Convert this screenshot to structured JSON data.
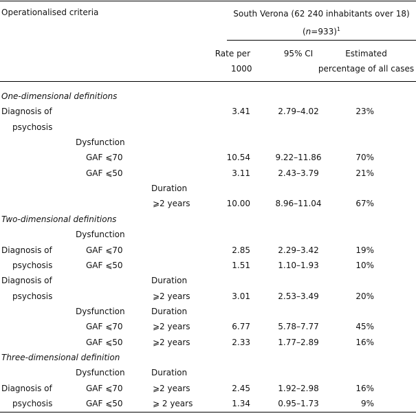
{
  "header": {
    "criteria": "Operationalised criteria",
    "population": "South Verona (62 240 inhabitants over 18)",
    "n_open": "(",
    "n_var": "n",
    "n_rest": "=933)",
    "n_note": "1",
    "rate": [
      "Rate per",
      "1000"
    ],
    "ci": "95% CI",
    "pct": [
      "Estimated",
      "percentage of all cases"
    ]
  },
  "rows": [
    {
      "section": "One-dimensional definitions"
    },
    {
      "diag": "Diagnosis of",
      "rate": "3.41",
      "ci": "2.79–4.02",
      "pct": "23%"
    },
    {
      "diag": "psychosis"
    },
    {
      "dys": "Dysfunction"
    },
    {
      "gaf": "GAF ⩽70",
      "rate": "10.54",
      "ci": "9.22–11.86",
      "pct": "70%"
    },
    {
      "gaf": "GAF ⩽50",
      "rate": "3.11",
      "ci": "2.43–3.79",
      "pct": "21%"
    },
    {
      "dur": "Duration"
    },
    {
      "dur": "⩾2 years",
      "rate": "10.00",
      "ci": "8.96–11.04",
      "pct": "67%"
    },
    {
      "section": "Two-dimensional definitions"
    },
    {
      "dys": "Dysfunction"
    },
    {
      "diag": "Diagnosis of",
      "gaf": "GAF ⩽70",
      "rate": "2.85",
      "ci": "2.29–3.42",
      "pct": "19%"
    },
    {
      "diag": "psychosis",
      "gaf": "GAF ⩽50",
      "rate": "1.51",
      "ci": "1.10–1.93",
      "pct": "10%"
    },
    {
      "diag": "Diagnosis of",
      "dur": "Duration"
    },
    {
      "diag": "psychosis",
      "dur": "⩾2 years",
      "rate": "3.01",
      "ci": "2.53–3.49",
      "pct": "20%"
    },
    {
      "dys": "Dysfunction",
      "dur": "Duration"
    },
    {
      "gaf": "GAF ⩽70",
      "dur": "⩾2 years",
      "rate": "6.77",
      "ci": "5.78–7.77",
      "pct": "45%"
    },
    {
      "gaf": "GAF ⩽50",
      "dur": "⩾2 years",
      "rate": "2.33",
      "ci": "1.77–2.89",
      "pct": "16%"
    },
    {
      "section": "Three-dimensional definition"
    },
    {
      "dys": "Dysfunction",
      "dur": "Duration"
    },
    {
      "diag": "Diagnosis of",
      "gaf": "GAF ⩽70",
      "dur": "⩾2 years",
      "rate": "2.45",
      "ci": "1.92–2.98",
      "pct": "16%"
    },
    {
      "diag": "psychosis",
      "gaf": "GAF ⩽50",
      "dur": "⩾ 2 years",
      "rate": "1.34",
      "ci": "0.95–1.73",
      "pct": "9%"
    }
  ]
}
